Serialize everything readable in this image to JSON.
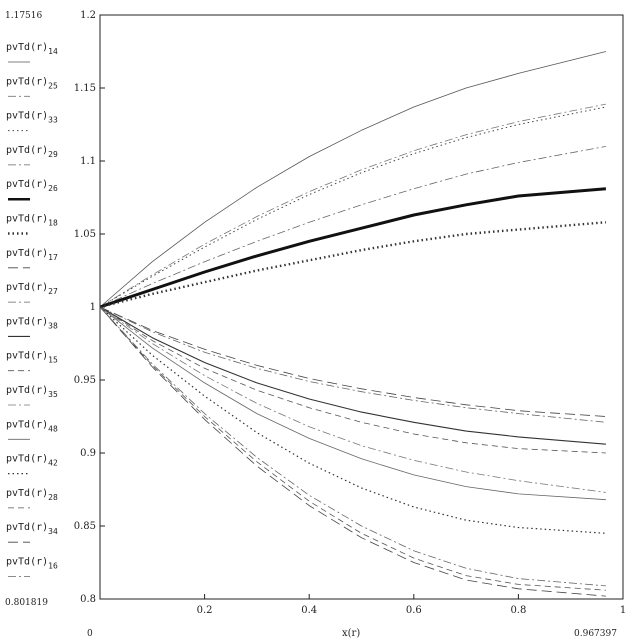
{
  "chart_data": {
    "type": "line",
    "xlabel": "x(r)",
    "x_min_label": "0",
    "x_max_label": "0.967397",
    "y_max_label": "1.17516",
    "y_min_label": "0.801819",
    "xlim": [
      0,
      1
    ],
    "ylim": [
      0.8,
      1.2
    ],
    "x_ticks": [
      "0",
      "0.2",
      "0.4",
      "0.6",
      "0.8",
      "1"
    ],
    "y_ticks": [
      "0.8",
      "0.85",
      "0.9",
      "0.95",
      "1",
      "1.05",
      "1.1",
      "1.15",
      "1.2"
    ],
    "x_ticks_values": [
      0,
      0.2,
      0.4,
      0.6,
      0.8,
      1
    ],
    "y_ticks_values": [
      0.8,
      0.85,
      0.9,
      0.95,
      1,
      1.05,
      1.1,
      1.15,
      1.2
    ],
    "x": [
      0,
      0.1,
      0.2,
      0.3,
      0.4,
      0.5,
      0.6,
      0.7,
      0.8,
      0.967397
    ],
    "grid": false,
    "legend_position": "left",
    "series": [
      {
        "name": "pvTd(r)",
        "sub": "14",
        "style": "solid",
        "width": 0.8,
        "color": "#555555",
        "values": [
          1.0,
          1.031,
          1.058,
          1.082,
          1.103,
          1.121,
          1.137,
          1.15,
          1.16,
          1.175
        ]
      },
      {
        "name": "pvTd(r)",
        "sub": "25",
        "style": "dashdot",
        "width": 0.8,
        "color": "#777777",
        "values": [
          1.0,
          1.022,
          1.043,
          1.062,
          1.079,
          1.094,
          1.107,
          1.118,
          1.127,
          1.139
        ]
      },
      {
        "name": "pvTd(r)",
        "sub": "33",
        "style": "dotted",
        "width": 1.0,
        "color": "#444444",
        "values": [
          1.0,
          1.021,
          1.041,
          1.06,
          1.077,
          1.092,
          1.105,
          1.116,
          1.125,
          1.137
        ]
      },
      {
        "name": "pvTd(r)",
        "sub": "29",
        "style": "dashdot",
        "width": 0.8,
        "color": "#666666",
        "values": [
          1.0,
          1.016,
          1.031,
          1.045,
          1.058,
          1.07,
          1.081,
          1.091,
          1.099,
          1.11
        ]
      },
      {
        "name": "pvTd(r)",
        "sub": "26",
        "style": "solid",
        "width": 3.0,
        "color": "#111111",
        "values": [
          1.0,
          1.012,
          1.024,
          1.035,
          1.045,
          1.054,
          1.063,
          1.07,
          1.076,
          1.081
        ]
      },
      {
        "name": "pvTd(r)",
        "sub": "18",
        "style": "dotted",
        "width": 2.4,
        "color": "#333333",
        "values": [
          1.0,
          1.009,
          1.017,
          1.025,
          1.032,
          1.039,
          1.045,
          1.05,
          1.053,
          1.058
        ]
      },
      {
        "name": "pvTd(r)",
        "sub": "17",
        "style": "longdash",
        "width": 0.8,
        "color": "#444444",
        "values": [
          1.0,
          0.984,
          0.971,
          0.96,
          0.951,
          0.944,
          0.938,
          0.933,
          0.929,
          0.925
        ]
      },
      {
        "name": "pvTd(r)",
        "sub": "27",
        "style": "dashdot",
        "width": 0.8,
        "color": "#666666",
        "values": [
          1.0,
          0.983,
          0.969,
          0.958,
          0.949,
          0.942,
          0.936,
          0.931,
          0.927,
          0.921
        ]
      },
      {
        "name": "pvTd(r)",
        "sub": "38",
        "style": "solid",
        "width": 1.1,
        "color": "#333333",
        "values": [
          1.0,
          0.979,
          0.962,
          0.948,
          0.937,
          0.928,
          0.921,
          0.915,
          0.911,
          0.906
        ]
      },
      {
        "name": "pvTd(r)",
        "sub": "15",
        "style": "dashed",
        "width": 0.8,
        "color": "#555555",
        "values": [
          1.0,
          0.977,
          0.958,
          0.943,
          0.931,
          0.921,
          0.913,
          0.907,
          0.903,
          0.9
        ]
      },
      {
        "name": "pvTd(r)",
        "sub": "35",
        "style": "dashdot",
        "width": 0.8,
        "color": "#777777",
        "values": [
          1.0,
          0.975,
          0.953,
          0.934,
          0.918,
          0.905,
          0.895,
          0.887,
          0.881,
          0.873
        ]
      },
      {
        "name": "pvTd(r)",
        "sub": "48",
        "style": "solid",
        "width": 0.8,
        "color": "#666666",
        "values": [
          1.0,
          0.972,
          0.948,
          0.927,
          0.91,
          0.896,
          0.885,
          0.877,
          0.872,
          0.868
        ]
      },
      {
        "name": "pvTd(r)",
        "sub": "42",
        "style": "dotted",
        "width": 1.2,
        "color": "#333333",
        "values": [
          1.0,
          0.967,
          0.939,
          0.914,
          0.893,
          0.876,
          0.863,
          0.854,
          0.849,
          0.845
        ]
      },
      {
        "name": "pvTd(r)",
        "sub": "28",
        "style": "dashed",
        "width": 0.8,
        "color": "#555555",
        "values": [
          1.0,
          0.96,
          0.925,
          0.894,
          0.867,
          0.845,
          0.828,
          0.816,
          0.81,
          0.806
        ]
      },
      {
        "name": "pvTd(r)",
        "sub": "34",
        "style": "longdash",
        "width": 0.8,
        "color": "#444444",
        "values": [
          1.0,
          0.959,
          0.923,
          0.891,
          0.864,
          0.842,
          0.825,
          0.813,
          0.807,
          0.802
        ]
      },
      {
        "name": "pvTd(r)",
        "sub": "16",
        "style": "dashdot",
        "width": 0.8,
        "color": "#666666",
        "values": [
          1.0,
          0.961,
          0.927,
          0.897,
          0.871,
          0.85,
          0.833,
          0.821,
          0.814,
          0.809
        ]
      }
    ]
  }
}
